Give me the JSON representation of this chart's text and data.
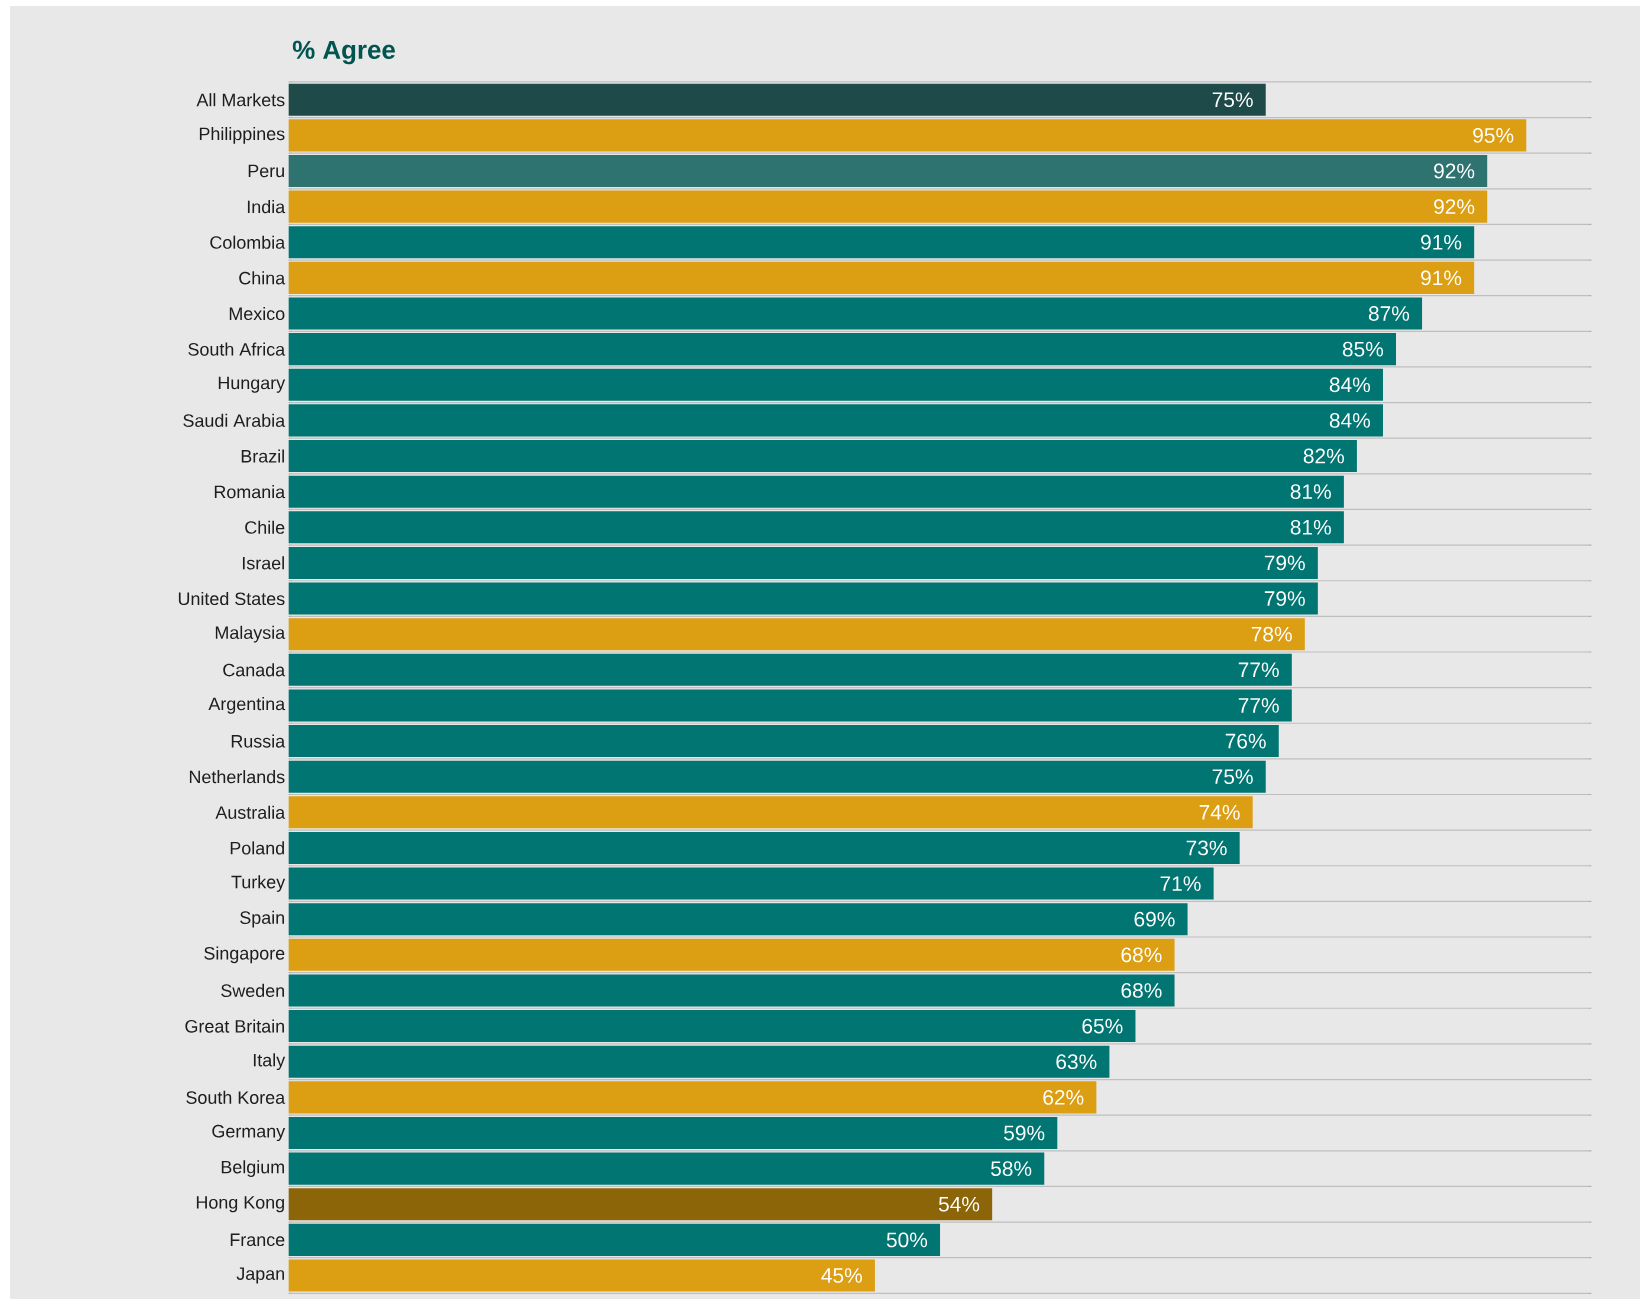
{
  "chart_data": {
    "type": "bar",
    "orientation": "horizontal",
    "title": "% Agree",
    "categories": [
      "All Markets",
      "Philippines",
      "Peru",
      "India",
      "Colombia",
      "China",
      "Mexico",
      "South Africa",
      "Hungary",
      "Saudi Arabia",
      "Brazil",
      "Romania",
      "Chile",
      "Israel",
      "United States",
      "Malaysia",
      "Canada",
      "Argentina",
      "Russia",
      "Netherlands",
      "Australia",
      "Poland",
      "Turkey",
      "Spain",
      "Singapore",
      "Sweden",
      "Great Britain",
      "Italy",
      "South Korea",
      "Germany",
      "Belgium",
      "Hong Kong",
      "France",
      "Japan"
    ],
    "values": [
      75,
      95,
      92,
      92,
      91,
      91,
      87,
      85,
      84,
      84,
      82,
      81,
      81,
      79,
      79,
      78,
      77,
      77,
      76,
      75,
      74,
      73,
      71,
      69,
      68,
      68,
      65,
      63,
      62,
      59,
      58,
      54,
      50,
      45
    ],
    "value_labels": [
      "75%",
      "95%",
      "92%",
      "92%",
      "91%",
      "91%",
      "87%",
      "85%",
      "84%",
      "84%",
      "82%",
      "81%",
      "81%",
      "79%",
      "79%",
      "78%",
      "77%",
      "77%",
      "76%",
      "75%",
      "74%",
      "73%",
      "71%",
      "69%",
      "68%",
      "68%",
      "65%",
      "63%",
      "62%",
      "59%",
      "58%",
      "54%",
      "50%",
      "45%"
    ],
    "colors": [
      "#1f4a4a",
      "#dc9e12",
      "#2e7370",
      "#dc9e12",
      "#007571",
      "#dc9e12",
      "#007571",
      "#007571",
      "#007571",
      "#007571",
      "#007571",
      "#007571",
      "#007571",
      "#007571",
      "#007571",
      "#dc9e12",
      "#007571",
      "#007571",
      "#007571",
      "#007571",
      "#dc9e12",
      "#007571",
      "#007571",
      "#007571",
      "#dc9e12",
      "#007571",
      "#007571",
      "#007571",
      "#dc9e12",
      "#007571",
      "#007571",
      "#8c6508",
      "#007571",
      "#dc9e12"
    ],
    "xlim": [
      0,
      100
    ],
    "tick_labels": "y",
    "grid": "y"
  }
}
